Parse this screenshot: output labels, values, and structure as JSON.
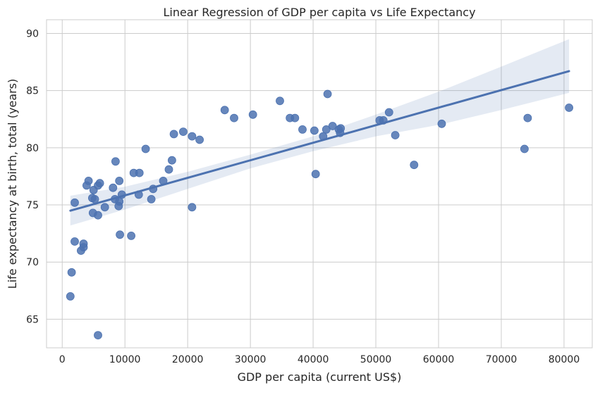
{
  "chart_data": {
    "type": "scatter",
    "title": "Linear Regression of GDP per capita vs Life Expectancy",
    "xlabel": "GDP per capita (current US$)",
    "ylabel": "Life expectancy at birth, total (years)",
    "xlim": [
      -2500,
      84500
    ],
    "ylim": [
      62.5,
      91.2
    ],
    "xticks": [
      0,
      10000,
      20000,
      30000,
      40000,
      50000,
      60000,
      70000,
      80000
    ],
    "yticks": [
      65,
      70,
      75,
      80,
      85,
      90
    ],
    "grid": true,
    "legend": "none",
    "colors": {
      "points": "#4c72b0",
      "line": "#4c72b0",
      "band": "#4c72b0",
      "grid": "#cccccc",
      "background": "#ffffff"
    },
    "points": [
      {
        "x": 1300,
        "y": 67.0
      },
      {
        "x": 1500,
        "y": 69.1
      },
      {
        "x": 2000,
        "y": 71.8
      },
      {
        "x": 2000,
        "y": 75.2
      },
      {
        "x": 3000,
        "y": 71.0
      },
      {
        "x": 3400,
        "y": 71.3
      },
      {
        "x": 3400,
        "y": 71.6
      },
      {
        "x": 3900,
        "y": 76.7
      },
      {
        "x": 4200,
        "y": 77.1
      },
      {
        "x": 4800,
        "y": 75.6
      },
      {
        "x": 4900,
        "y": 74.3
      },
      {
        "x": 5000,
        "y": 76.3
      },
      {
        "x": 5200,
        "y": 75.5
      },
      {
        "x": 5700,
        "y": 74.1
      },
      {
        "x": 5700,
        "y": 76.7
      },
      {
        "x": 5700,
        "y": 63.6
      },
      {
        "x": 6000,
        "y": 76.9
      },
      {
        "x": 6800,
        "y": 74.8
      },
      {
        "x": 8100,
        "y": 76.5
      },
      {
        "x": 8400,
        "y": 75.5
      },
      {
        "x": 8500,
        "y": 78.8
      },
      {
        "x": 9000,
        "y": 74.9
      },
      {
        "x": 9100,
        "y": 75.3
      },
      {
        "x": 9100,
        "y": 77.1
      },
      {
        "x": 9200,
        "y": 72.4
      },
      {
        "x": 9500,
        "y": 75.9
      },
      {
        "x": 11000,
        "y": 72.3
      },
      {
        "x": 11400,
        "y": 77.8
      },
      {
        "x": 12200,
        "y": 75.9
      },
      {
        "x": 12300,
        "y": 77.8
      },
      {
        "x": 13300,
        "y": 79.9
      },
      {
        "x": 14200,
        "y": 75.5
      },
      {
        "x": 14500,
        "y": 76.4
      },
      {
        "x": 16100,
        "y": 77.1
      },
      {
        "x": 17000,
        "y": 78.1
      },
      {
        "x": 17500,
        "y": 78.9
      },
      {
        "x": 17800,
        "y": 81.2
      },
      {
        "x": 19300,
        "y": 81.4
      },
      {
        "x": 20700,
        "y": 81.0
      },
      {
        "x": 20700,
        "y": 74.8
      },
      {
        "x": 21900,
        "y": 80.7
      },
      {
        "x": 25900,
        "y": 83.3
      },
      {
        "x": 27400,
        "y": 82.6
      },
      {
        "x": 30400,
        "y": 82.9
      },
      {
        "x": 34700,
        "y": 84.1
      },
      {
        "x": 36300,
        "y": 82.6
      },
      {
        "x": 37100,
        "y": 82.6
      },
      {
        "x": 38300,
        "y": 81.6
      },
      {
        "x": 40200,
        "y": 81.5
      },
      {
        "x": 40400,
        "y": 77.7
      },
      {
        "x": 41600,
        "y": 81.0
      },
      {
        "x": 42100,
        "y": 81.6
      },
      {
        "x": 42300,
        "y": 84.7
      },
      {
        "x": 43100,
        "y": 81.9
      },
      {
        "x": 44100,
        "y": 81.6
      },
      {
        "x": 44300,
        "y": 81.3
      },
      {
        "x": 44400,
        "y": 81.7
      },
      {
        "x": 50600,
        "y": 82.4
      },
      {
        "x": 51200,
        "y": 82.4
      },
      {
        "x": 52100,
        "y": 83.1
      },
      {
        "x": 53100,
        "y": 81.1
      },
      {
        "x": 56100,
        "y": 78.5
      },
      {
        "x": 60500,
        "y": 82.1
      },
      {
        "x": 73700,
        "y": 79.9
      },
      {
        "x": 74200,
        "y": 82.6
      },
      {
        "x": 80800,
        "y": 83.5
      }
    ],
    "regression_line": {
      "x": [
        1300,
        80800
      ],
      "y": [
        74.5,
        86.7
      ]
    },
    "confidence_band": {
      "x": [
        1300,
        10000,
        20000,
        30000,
        40000,
        50000,
        60000,
        70000,
        80800
      ],
      "upper": [
        75.8,
        76.6,
        77.9,
        79.4,
        81.0,
        82.9,
        84.9,
        87.1,
        89.5
      ],
      "lower": [
        73.2,
        74.6,
        76.4,
        78.2,
        79.7,
        81.0,
        82.0,
        83.3,
        84.8
      ]
    }
  }
}
